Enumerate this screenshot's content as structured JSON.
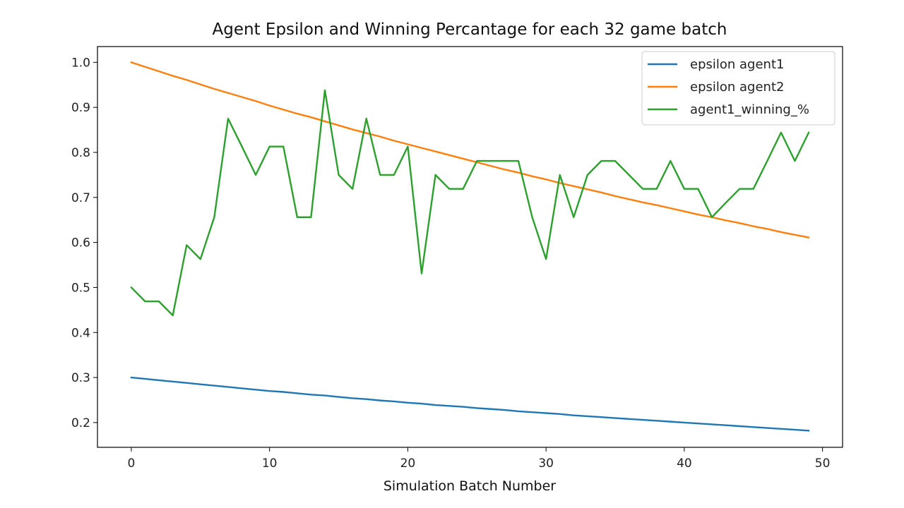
{
  "chart_data": {
    "type": "line",
    "title": "Agent Epsilon and Winning Percantage for each 32 game batch",
    "xlabel": "Simulation Batch Number",
    "ylabel": "",
    "xlim": [
      -2.45,
      51.45
    ],
    "ylim": [
      0.145,
      1.035
    ],
    "xticks": [
      0,
      10,
      20,
      30,
      40,
      50
    ],
    "yticks": [
      0.2,
      0.3,
      0.4,
      0.5,
      0.6,
      0.7,
      0.8,
      0.9,
      1.0
    ],
    "ytick_labels": [
      "0.2",
      "0.3",
      "0.4",
      "0.5",
      "0.6",
      "0.7",
      "0.8",
      "0.9",
      "1.0"
    ],
    "grid": false,
    "legend_position": "top-right",
    "x": [
      0,
      1,
      2,
      3,
      4,
      5,
      6,
      7,
      8,
      9,
      10,
      11,
      12,
      13,
      14,
      15,
      16,
      17,
      18,
      19,
      20,
      21,
      22,
      23,
      24,
      25,
      26,
      27,
      28,
      29,
      30,
      31,
      32,
      33,
      34,
      35,
      36,
      37,
      38,
      39,
      40,
      41,
      42,
      43,
      44,
      45,
      46,
      47,
      48,
      49
    ],
    "series": [
      {
        "name": "epsilon agent1",
        "color": "#1f77b4",
        "values": [
          0.3,
          0.297,
          0.294,
          0.291,
          0.288,
          0.285,
          0.282,
          0.279,
          0.276,
          0.273,
          0.27,
          0.268,
          0.265,
          0.262,
          0.26,
          0.257,
          0.254,
          0.252,
          0.249,
          0.247,
          0.244,
          0.242,
          0.239,
          0.237,
          0.235,
          0.232,
          0.23,
          0.228,
          0.225,
          0.223,
          0.221,
          0.219,
          0.216,
          0.214,
          0.212,
          0.21,
          0.208,
          0.206,
          0.204,
          0.202,
          0.2,
          0.198,
          0.196,
          0.194,
          0.192,
          0.19,
          0.188,
          0.186,
          0.184,
          0.182
        ]
      },
      {
        "name": "epsilon agent2",
        "color": "#ff7f0e",
        "values": [
          1.0,
          0.99,
          0.98,
          0.97,
          0.961,
          0.951,
          0.941,
          0.932,
          0.923,
          0.914,
          0.904,
          0.895,
          0.886,
          0.878,
          0.869,
          0.86,
          0.851,
          0.843,
          0.835,
          0.826,
          0.818,
          0.81,
          0.802,
          0.794,
          0.786,
          0.778,
          0.77,
          0.762,
          0.755,
          0.747,
          0.74,
          0.732,
          0.725,
          0.718,
          0.711,
          0.703,
          0.696,
          0.689,
          0.683,
          0.676,
          0.669,
          0.662,
          0.656,
          0.649,
          0.643,
          0.636,
          0.63,
          0.623,
          0.617,
          0.611
        ]
      },
      {
        "name": "agent1_winning_%",
        "color": "#2ca02c",
        "values": [
          0.5,
          0.469,
          0.469,
          0.438,
          0.594,
          0.563,
          0.656,
          0.875,
          0.813,
          0.75,
          0.813,
          0.813,
          0.656,
          0.656,
          0.938,
          0.75,
          0.719,
          0.875,
          0.75,
          0.75,
          0.813,
          0.531,
          0.75,
          0.719,
          0.719,
          0.781,
          0.781,
          0.781,
          0.781,
          0.656,
          0.563,
          0.75,
          0.656,
          0.75,
          0.781,
          0.781,
          0.75,
          0.719,
          0.719,
          0.781,
          0.719,
          0.719,
          0.656,
          0.688,
          0.719,
          0.719,
          0.781,
          0.844,
          0.781,
          0.844
        ]
      }
    ]
  }
}
